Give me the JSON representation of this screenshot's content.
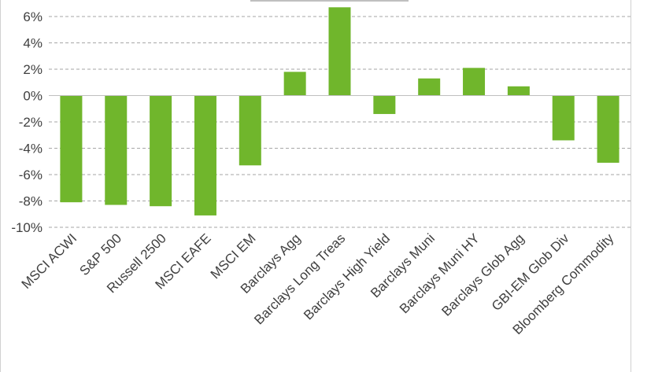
{
  "chart_data": {
    "type": "bar",
    "title": "",
    "xlabel": "",
    "ylabel": "",
    "categories": [
      "MSCI ACWI",
      "S&P 500",
      "Russell 2500",
      "MSCI EAFE",
      "MSCI EM",
      "Barclays Agg",
      "Barclays Long Treas",
      "Barclays High Yield",
      "Barclays Muni",
      "Barclays Muni HY",
      "Barclays Glob Agg",
      "GBI-EM Glob Div",
      "Bloomberg Commodity"
    ],
    "values": [
      -8.1,
      -8.3,
      -8.4,
      -9.1,
      -5.3,
      1.8,
      6.7,
      -1.4,
      1.3,
      2.1,
      0.7,
      -3.4,
      -5.1
    ],
    "ylim": [
      -10,
      6
    ],
    "yticks": [
      -10,
      -8,
      -6,
      -4,
      -2,
      0,
      2,
      4,
      6
    ],
    "ytick_labels": [
      "-10%",
      "-8%",
      "-6%",
      "-4%",
      "-2%",
      "0%",
      "2%",
      "4%",
      "6%"
    ],
    "grid": true,
    "bar_color": "#70b62c",
    "grid_color": "#a6a6a6"
  }
}
